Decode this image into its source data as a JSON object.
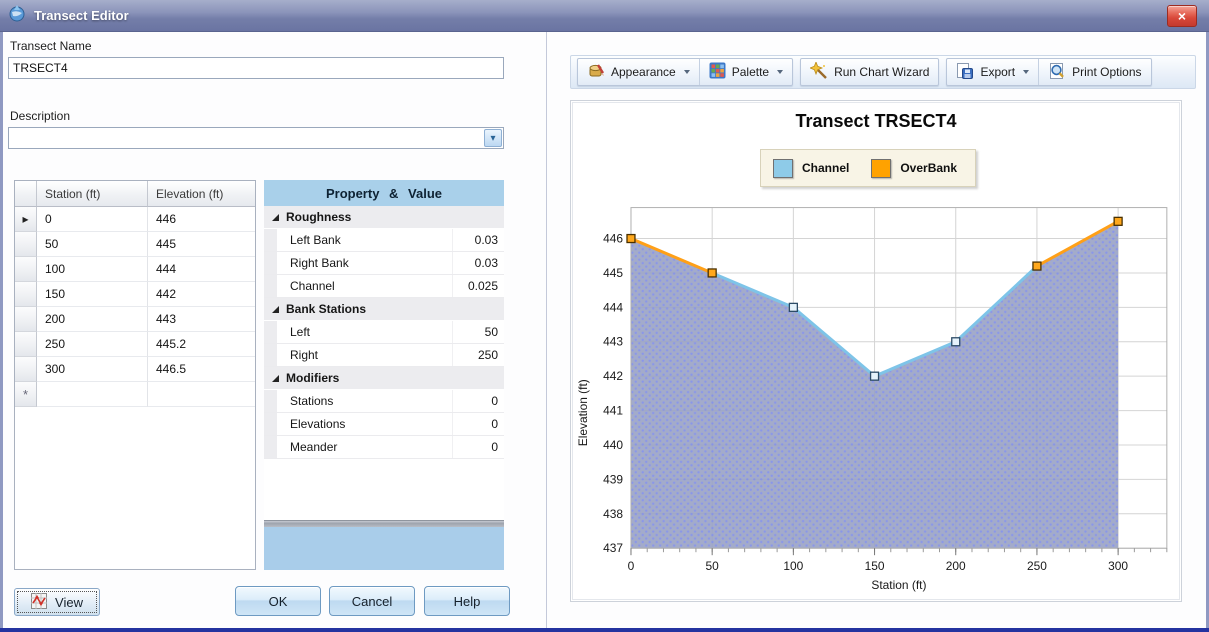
{
  "window": {
    "title": "Transect Editor",
    "close_glyph": "×"
  },
  "left_panel": {
    "transect_name_label": "Transect Name",
    "transect_name_value": "TRSECT4",
    "description_label": "Description",
    "description_value": "",
    "table": {
      "columns": [
        "Station (ft)",
        "Elevation (ft)"
      ],
      "rows": [
        [
          "0",
          "446"
        ],
        [
          "50",
          "445"
        ],
        [
          "100",
          "444"
        ],
        [
          "150",
          "442"
        ],
        [
          "200",
          "443"
        ],
        [
          "250",
          "445.2"
        ],
        [
          "300",
          "446.5"
        ]
      ],
      "selected_row_index": 0,
      "selected_row_marker": "▸",
      "new_row_marker": "*"
    },
    "property_grid": {
      "header": "Property & Value",
      "groups": [
        {
          "name": "Roughness",
          "items": [
            {
              "name": "Left Bank",
              "value": "0.03"
            },
            {
              "name": "Right Bank",
              "value": "0.03"
            },
            {
              "name": "Channel",
              "value": "0.025"
            }
          ]
        },
        {
          "name": "Bank Stations",
          "items": [
            {
              "name": "Left",
              "value": "50"
            },
            {
              "name": "Right",
              "value": "250"
            }
          ]
        },
        {
          "name": "Modifiers",
          "items": [
            {
              "name": "Stations",
              "value": "0"
            },
            {
              "name": "Elevations",
              "value": "0"
            },
            {
              "name": "Meander",
              "value": "0"
            }
          ]
        }
      ]
    },
    "buttons": {
      "view": "View",
      "ok": "OK",
      "cancel": "Cancel",
      "help": "Help"
    }
  },
  "toolbar": {
    "appearance": "Appearance",
    "palette": "Palette",
    "run_chart_wizard": "Run Chart Wizard",
    "export": "Export",
    "print_options": "Print Options"
  },
  "chart_data": {
    "type": "area",
    "title": "Transect TRSECT4",
    "xlabel": "Station (ft)",
    "ylabel": "Elevation (ft)",
    "x": [
      0,
      50,
      100,
      150,
      200,
      250,
      300
    ],
    "y": [
      446,
      445,
      444,
      442,
      443,
      445.2,
      446.5
    ],
    "bank_stations": {
      "left": 50,
      "right": 250
    },
    "series": [
      {
        "name": "Channel",
        "color": "#7EC4E8",
        "marker_fill": "#E6F3FB",
        "marker_stroke": "#2B4A66"
      },
      {
        "name": "OverBank",
        "color": "#FFA018",
        "marker_fill": "#FFA81C",
        "marker_stroke": "#4A3000"
      }
    ],
    "xlim": [
      0,
      330
    ],
    "ylim": [
      437,
      446.9
    ],
    "x_ticks": [
      0,
      50,
      100,
      150,
      200,
      250,
      300
    ],
    "x_minor_step": 10,
    "y_ticks": [
      437,
      438,
      439,
      440,
      441,
      442,
      443,
      444,
      445,
      446
    ],
    "grid": true,
    "legend_position": "top",
    "fill_base": "#99A2C4",
    "fill_dot": "#7D8BE8",
    "grid_color": "#D4D4D4"
  }
}
